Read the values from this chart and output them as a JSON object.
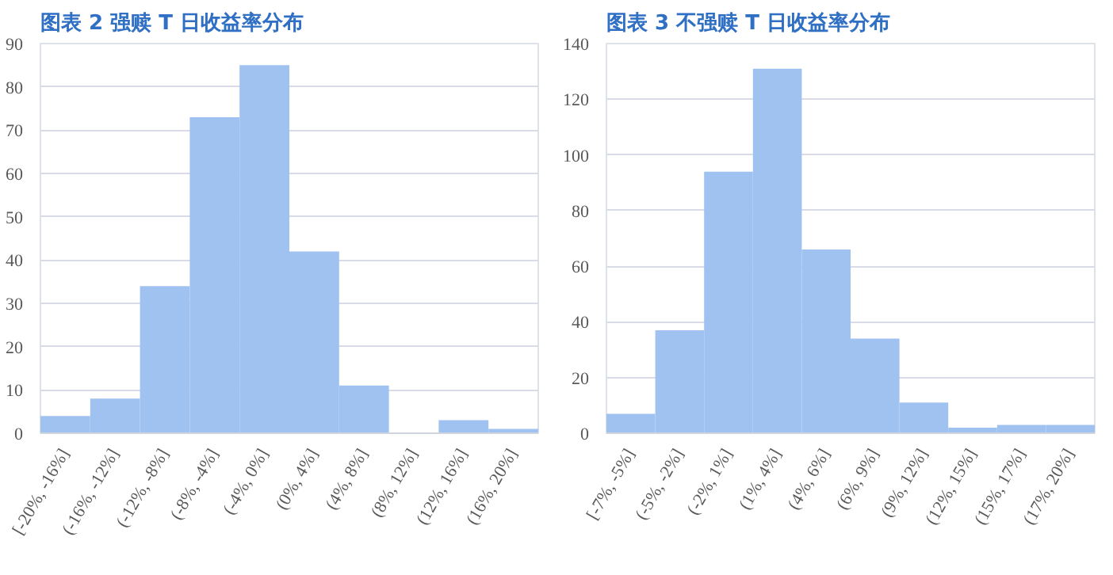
{
  "chart_data": [
    {
      "type": "bar",
      "title": "图表 2 强赎 T 日收益率分布",
      "categories": [
        "[-20%, -16%]",
        "(-16%, -12%]",
        "(-12%, -8%]",
        "(-8%, -4%]",
        "(-4%, 0%]",
        "(0%, 4%]",
        "(4%, 8%]",
        "(8%, 12%]",
        "(12%, 16%]",
        "(16%, 20%]"
      ],
      "values": [
        4,
        8,
        34,
        73,
        85,
        42,
        11,
        0,
        3,
        1
      ],
      "color": "#a0c2f0",
      "ylim": [
        0,
        90
      ],
      "yticks": [
        0,
        10,
        20,
        30,
        40,
        50,
        60,
        70,
        80,
        90
      ],
      "grid": "y"
    },
    {
      "type": "bar",
      "title": "图表 3 不强赎 T 日收益率分布",
      "categories": [
        "[-7%, -5%]",
        "(-5%, -2%]",
        "(-2%, 1%]",
        "(1%, 4%]",
        "(4%, 6%]",
        "(6%, 9%]",
        "(9%, 12%]",
        "(12%, 15%]",
        "(15%, 17%]",
        "(17%, 20%]"
      ],
      "values": [
        7,
        37,
        94,
        131,
        66,
        34,
        11,
        2,
        3,
        3
      ],
      "color": "#a0c2f0",
      "ylim": [
        0,
        140
      ],
      "yticks": [
        0,
        20,
        40,
        60,
        80,
        100,
        120,
        140
      ],
      "grid": "y"
    }
  ]
}
